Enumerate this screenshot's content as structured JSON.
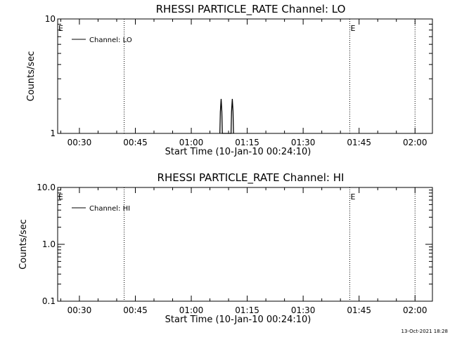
{
  "chart_data": [
    {
      "type": "line",
      "title": "RHESSI PARTICLE_RATE Channel: LO",
      "xlabel": "Start Time (10-Jan-10 00:24:10)",
      "ylabel": "Counts/sec",
      "y_scale": "log",
      "ylim": [
        1,
        10
      ],
      "y_ticks": [
        1,
        10
      ],
      "y_tick_labels": [
        "1",
        "10"
      ],
      "xlim": [
        "00:24:10",
        "02:04:40"
      ],
      "x_tick_labels": [
        "00:30",
        "00:45",
        "01:00",
        "01:15",
        "01:30",
        "01:45",
        "02:00"
      ],
      "x_tick_values": [
        "00:30",
        "00:45",
        "01:00",
        "01:15",
        "01:30",
        "01:45",
        "02:00"
      ],
      "legend": {
        "position": "top-left",
        "entries": [
          "Channel: LO"
        ]
      },
      "grid": false,
      "markers": [
        {
          "time": "00:24:10",
          "label": "E"
        },
        {
          "time": "00:42:00",
          "label": ""
        },
        {
          "time": "01:42:30",
          "label": "E"
        },
        {
          "time": "02:00:00",
          "label": ""
        }
      ],
      "series": [
        {
          "name": "Channel: LO",
          "x": [
            "01:07:40",
            "01:07:48",
            "01:08:00",
            "01:08:12",
            "01:08:20",
            "01:10:40",
            "01:10:48",
            "01:11:00",
            "01:11:12",
            "01:11:20"
          ],
          "y": [
            1,
            1.55,
            2,
            1.55,
            1,
            1,
            1.55,
            2,
            1.55,
            1
          ]
        }
      ]
    },
    {
      "type": "line",
      "title": "RHESSI PARTICLE_RATE Channel: HI",
      "xlabel": "Start Time (10-Jan-10 00:24:10)",
      "ylabel": "Counts/sec",
      "y_scale": "log",
      "ylim": [
        0.1,
        10
      ],
      "y_ticks": [
        0.1,
        1,
        10
      ],
      "y_tick_labels": [
        "0.1",
        "1.0",
        "10.0"
      ],
      "xlim": [
        "00:24:10",
        "02:04:40"
      ],
      "x_tick_labels": [
        "00:30",
        "00:45",
        "01:00",
        "01:15",
        "01:30",
        "01:45",
        "02:00"
      ],
      "x_tick_values": [
        "00:30",
        "00:45",
        "01:00",
        "01:15",
        "01:30",
        "01:45",
        "02:00"
      ],
      "legend": {
        "position": "top-left",
        "entries": [
          "Channel: HI"
        ]
      },
      "grid": false,
      "markers": [
        {
          "time": "00:24:10",
          "label": "E"
        },
        {
          "time": "00:42:00",
          "label": ""
        },
        {
          "time": "01:42:30",
          "label": "E"
        },
        {
          "time": "02:00:00",
          "label": ""
        }
      ],
      "series": [
        {
          "name": "Channel: HI",
          "x": [],
          "y": []
        }
      ]
    }
  ],
  "footer": {
    "timestamp": "13-Oct-2021 18:28"
  }
}
